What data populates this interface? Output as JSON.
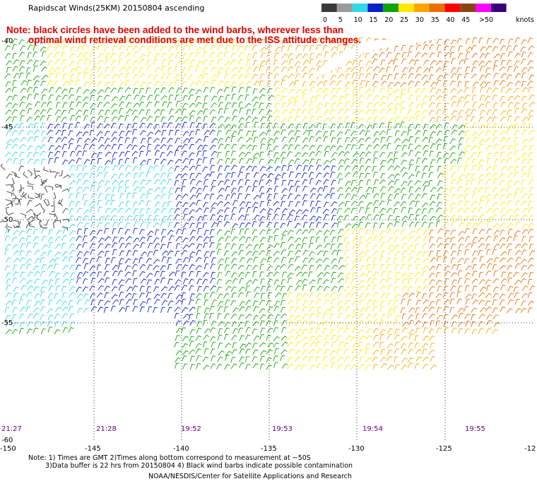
{
  "header": {
    "title": "Rapidscat Winds(25KM) 20150804 ascending",
    "note_line1": "Note: black circles have been added to the wind barbs, wherever less than",
    "note_line2": "optimal wind retrieval conditions are met due to the ISS attitude changes."
  },
  "legend": {
    "unit": "knots",
    "bins": [
      {
        "label": "0",
        "color": "#3a3a3a"
      },
      {
        "label": "5",
        "color": "#9a9a9a"
      },
      {
        "label": "10",
        "color": "#30d8e8"
      },
      {
        "label": "15",
        "color": "#0b1ec8"
      },
      {
        "label": "20",
        "color": "#0ea500"
      },
      {
        "label": "25",
        "color": "#ffe800"
      },
      {
        "label": "30",
        "color": "#ffa500"
      },
      {
        "label": "35",
        "color": "#e87000"
      },
      {
        "label": "40",
        "color": "#ff0000"
      },
      {
        "label": "45",
        "color": "#8b4513"
      },
      {
        "label": ">50",
        "color": "#ff00ff"
      },
      {
        "label": "",
        "color": "#3a007a"
      }
    ]
  },
  "axes": {
    "lon_labels": [
      "-150",
      "-145",
      "-140",
      "-135",
      "-130",
      "-125",
      "-12"
    ],
    "lat_labels": [
      "-40",
      "-45",
      "-50",
      "-55",
      "-60"
    ]
  },
  "pass_times": [
    "21:27",
    "21:28",
    "19:52",
    "19:53",
    "19:54",
    "19:55"
  ],
  "footer": {
    "line1": "Note: 1) Times are GMT 2)Times along bottom correspond to measurement at ~50S",
    "line2": "3)Data buffer is 22 hrs from 20150804 4) Black wind barbs indicate possible contamination",
    "credit": "NOAA/NESDIS/Center for Satellite Applications and Research"
  }
}
